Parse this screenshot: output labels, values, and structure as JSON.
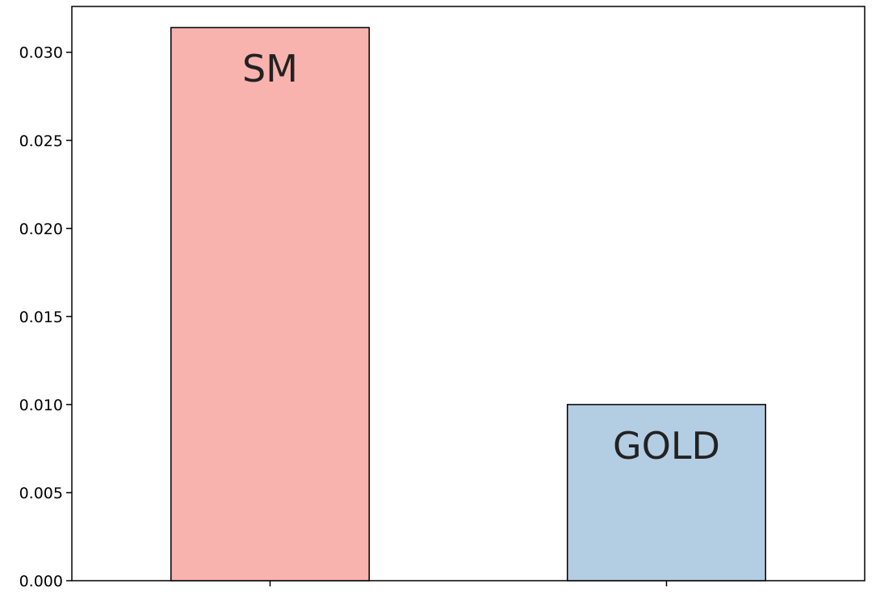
{
  "chart_data": {
    "type": "bar",
    "title": "",
    "xlabel": "",
    "ylabel": "",
    "categories": [
      "SM",
      "GOLD"
    ],
    "values": [
      0.0314,
      0.01
    ],
    "colors": [
      "#f9b3af",
      "#b3cde3"
    ],
    "edge_color": "#000000",
    "ylim": [
      0,
      0.0326
    ],
    "yticks": [
      "0.000",
      "0.005",
      "0.010",
      "0.015",
      "0.020",
      "0.025",
      "0.030"
    ],
    "ytick_values": [
      0,
      0.005,
      0.01,
      0.015,
      0.02,
      0.025,
      0.03
    ],
    "xticks_labeled": false,
    "grid": false
  }
}
